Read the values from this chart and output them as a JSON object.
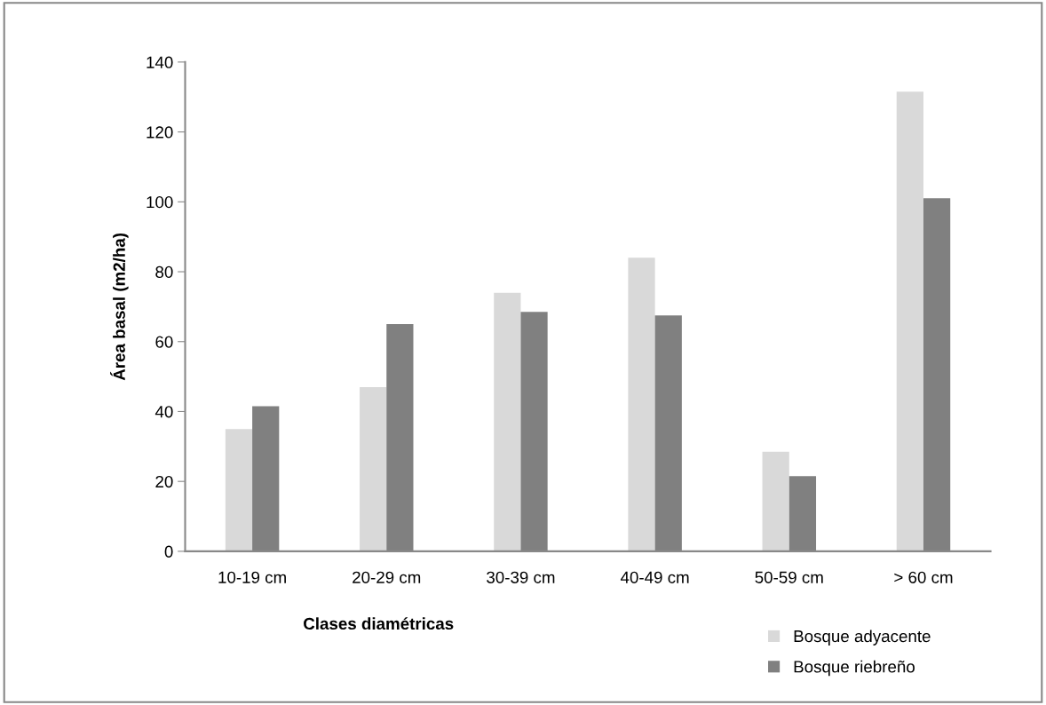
{
  "chart_data": {
    "type": "bar",
    "xlabel": "Clases diamétricas",
    "ylabel": "Área basal (m2/ha)",
    "categories": [
      "10-19 cm",
      "20-29 cm",
      "30-39 cm",
      "40-49 cm",
      "50-59 cm",
      "> 60 cm"
    ],
    "series": [
      {
        "name": "Bosque adyacente",
        "color": "#d9d9d9",
        "values": [
          35,
          47,
          74,
          84,
          28.5,
          131.5
        ]
      },
      {
        "name": "Bosque riebreño",
        "color": "#808080",
        "values": [
          41.5,
          65,
          68.5,
          67.5,
          21.5,
          101
        ]
      }
    ],
    "ylim": [
      0,
      140
    ],
    "yticks": [
      0,
      20,
      40,
      60,
      80,
      100,
      120,
      140
    ],
    "grid": false,
    "legend": "bottom right"
  }
}
